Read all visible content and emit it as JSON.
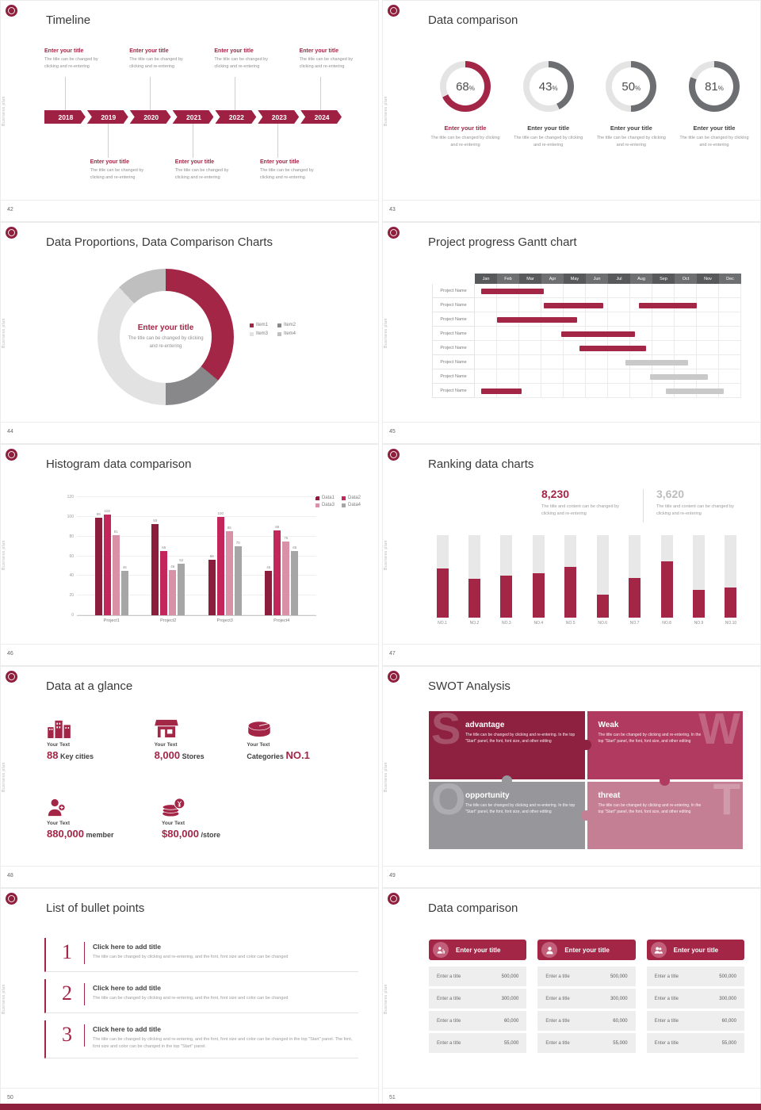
{
  "global": {
    "vertical_label": "Business plan",
    "accent": "#a32646"
  },
  "ph": {
    "title": "Enter your title",
    "desc": "The title can be changed by clicking and re-entering",
    "desc_alt": "The title and content can be changed by clicking and re-entering"
  },
  "s42": {
    "title": "Timeline",
    "page": "42",
    "years": [
      "2018",
      "2019",
      "2020",
      "2021",
      "2022",
      "2023",
      "2024"
    ]
  },
  "s43": {
    "title": "Data comparison",
    "page": "43",
    "rings": [
      {
        "type": "ring",
        "value": 68,
        "color": "#a32646",
        "track": "#e4e4e4",
        "label_color": "#a32646"
      },
      {
        "type": "ring",
        "value": 43,
        "color": "#6d6e71",
        "track": "#e4e4e4",
        "label_color": "#3f3f3f"
      },
      {
        "type": "ring",
        "value": 50,
        "color": "#6d6e71",
        "track": "#e4e4e4",
        "label_color": "#3f3f3f"
      },
      {
        "type": "ring",
        "value": 81,
        "color": "#6d6e71",
        "track": "#e4e4e4",
        "label_color": "#3f3f3f"
      }
    ]
  },
  "s44": {
    "title": "Data Proportions, Data Comparison Charts",
    "page": "44",
    "donut": {
      "type": "donut",
      "segments": [
        {
          "label": "Item1",
          "value": 36,
          "color": "#a32646"
        },
        {
          "label": "Item2",
          "value": 14,
          "color": "#88888b"
        },
        {
          "label": "Item3",
          "value": 38,
          "color": "#e2e2e2"
        },
        {
          "label": "Item4",
          "value": 12,
          "color": "#bfbfbf"
        }
      ]
    },
    "legend": {
      "type": "legend",
      "source": "s44.donut.segments"
    }
  },
  "s45": {
    "title": "Project progress Gantt chart",
    "page": "45",
    "gantt": {
      "type": "gantt",
      "months": [
        "Jan",
        "Feb",
        "Mar",
        "Apr",
        "May",
        "Jun",
        "Jul",
        "Aug",
        "Sep",
        "Oct",
        "Nov",
        "Dec"
      ],
      "row_label": "Project Name",
      "rows": 8,
      "bars": [
        {
          "row": 0,
          "start": 0.3,
          "span": 2.8,
          "color": "#a32646"
        },
        {
          "row": 1,
          "start": 3.1,
          "span": 2.7,
          "color": "#a32646"
        },
        {
          "row": 1,
          "start": 7.4,
          "span": 2.6,
          "color": "#a32646"
        },
        {
          "row": 2,
          "start": 1.0,
          "span": 3.6,
          "color": "#a32646"
        },
        {
          "row": 3,
          "start": 3.9,
          "span": 3.3,
          "color": "#a32646"
        },
        {
          "row": 4,
          "start": 4.7,
          "span": 3.0,
          "color": "#a32646"
        },
        {
          "row": 5,
          "start": 6.8,
          "span": 2.8,
          "color": "#c9c9c9"
        },
        {
          "row": 6,
          "start": 7.9,
          "span": 2.6,
          "color": "#c9c9c9"
        },
        {
          "row": 7,
          "start": 0.3,
          "span": 1.8,
          "color": "#a32646"
        },
        {
          "row": 7,
          "start": 8.6,
          "span": 2.6,
          "color": "#c9c9c9"
        }
      ]
    }
  },
  "s46": {
    "title": "Histogram data comparison",
    "page": "46",
    "chart": {
      "type": "bars",
      "ymax": 120,
      "yticks": [
        0,
        20,
        40,
        60,
        80,
        100,
        120
      ],
      "categories": [
        "Project1",
        "Project2",
        "Project3",
        "Project4"
      ],
      "series": [
        {
          "name": "Data1",
          "color": "#8a1e3c",
          "values": [
            99,
            93,
            56,
            45
          ]
        },
        {
          "name": "Data2",
          "color": "#c2265b",
          "values": [
            102,
            65,
            100,
            86
          ]
        },
        {
          "name": "Data3",
          "color": "#d891a6",
          "values": [
            81,
            46,
            85,
            75
          ]
        },
        {
          "name": "Data4",
          "color": "#a6a6a6",
          "values": [
            45,
            52,
            70,
            65
          ]
        }
      ]
    },
    "legend": {
      "type": "legend",
      "source": "s46.chart.series"
    }
  },
  "s47": {
    "title": "Ranking data charts",
    "page": "47",
    "stat1": "8,230",
    "stat2": "3,620",
    "ranking": {
      "type": "ranking",
      "color": "#a32646",
      "track": "#e8e8e8",
      "labels": [
        "NO.1",
        "NO.2",
        "NO.3",
        "NO.4",
        "NO.5",
        "NO.6",
        "NO.7",
        "NO.8",
        "NO.9",
        "NO.10"
      ],
      "values": [
        60,
        47,
        51,
        54,
        62,
        28,
        48,
        68,
        34,
        37
      ]
    }
  },
  "s48": {
    "title": "Data at a glance",
    "page": "48",
    "label": "Your Text",
    "stats": [
      {
        "big": "88",
        "small": "Key cities"
      },
      {
        "big": "8,000",
        "small": "Stores"
      },
      {
        "small": "Categories",
        "big": "NO.1"
      },
      {
        "big": "880,000",
        "small": "member"
      },
      {
        "big": "$80,000",
        "small": "/store"
      }
    ]
  },
  "s49": {
    "title": "SWOT Analysis",
    "page": "49",
    "desc": "The title can be changed by clicking and re-entering. In the top \"Start\" panel, the font, font size, and other editing",
    "quads": [
      {
        "letter": "S",
        "name": "advantage",
        "color": "#8e2040"
      },
      {
        "letter": "W",
        "name": "Weak",
        "color": "#b03a60"
      },
      {
        "letter": "O",
        "name": "opportunity",
        "color": "#97979b"
      },
      {
        "letter": "T",
        "name": "threat",
        "color": "#c57f95"
      }
    ]
  },
  "s50": {
    "title": "List of bullet points",
    "page": "50",
    "items": [
      {
        "num": "1",
        "title": "Click here to add title",
        "desc": "The title can be changed by clicking and re-entering, and the font, font size and color can be changed"
      },
      {
        "num": "2",
        "title": "Click here to add title",
        "desc": "The title can be changed by clicking and re-entering, and the font, font size and color can be changed"
      },
      {
        "num": "3",
        "title": "Click here to add title",
        "desc": "The title can be changed by clicking and re-entering, and the font, font size and color can be changed in the top \"Start\" panel. The font, font size and color can be changed in the top \"Start\" panel."
      }
    ]
  },
  "s51": {
    "title": "Data comparison",
    "page": "51",
    "header": "Enter your title",
    "row_label": "Enter a title",
    "values": [
      "500,000",
      "300,000",
      "60,000",
      "55,000"
    ]
  }
}
